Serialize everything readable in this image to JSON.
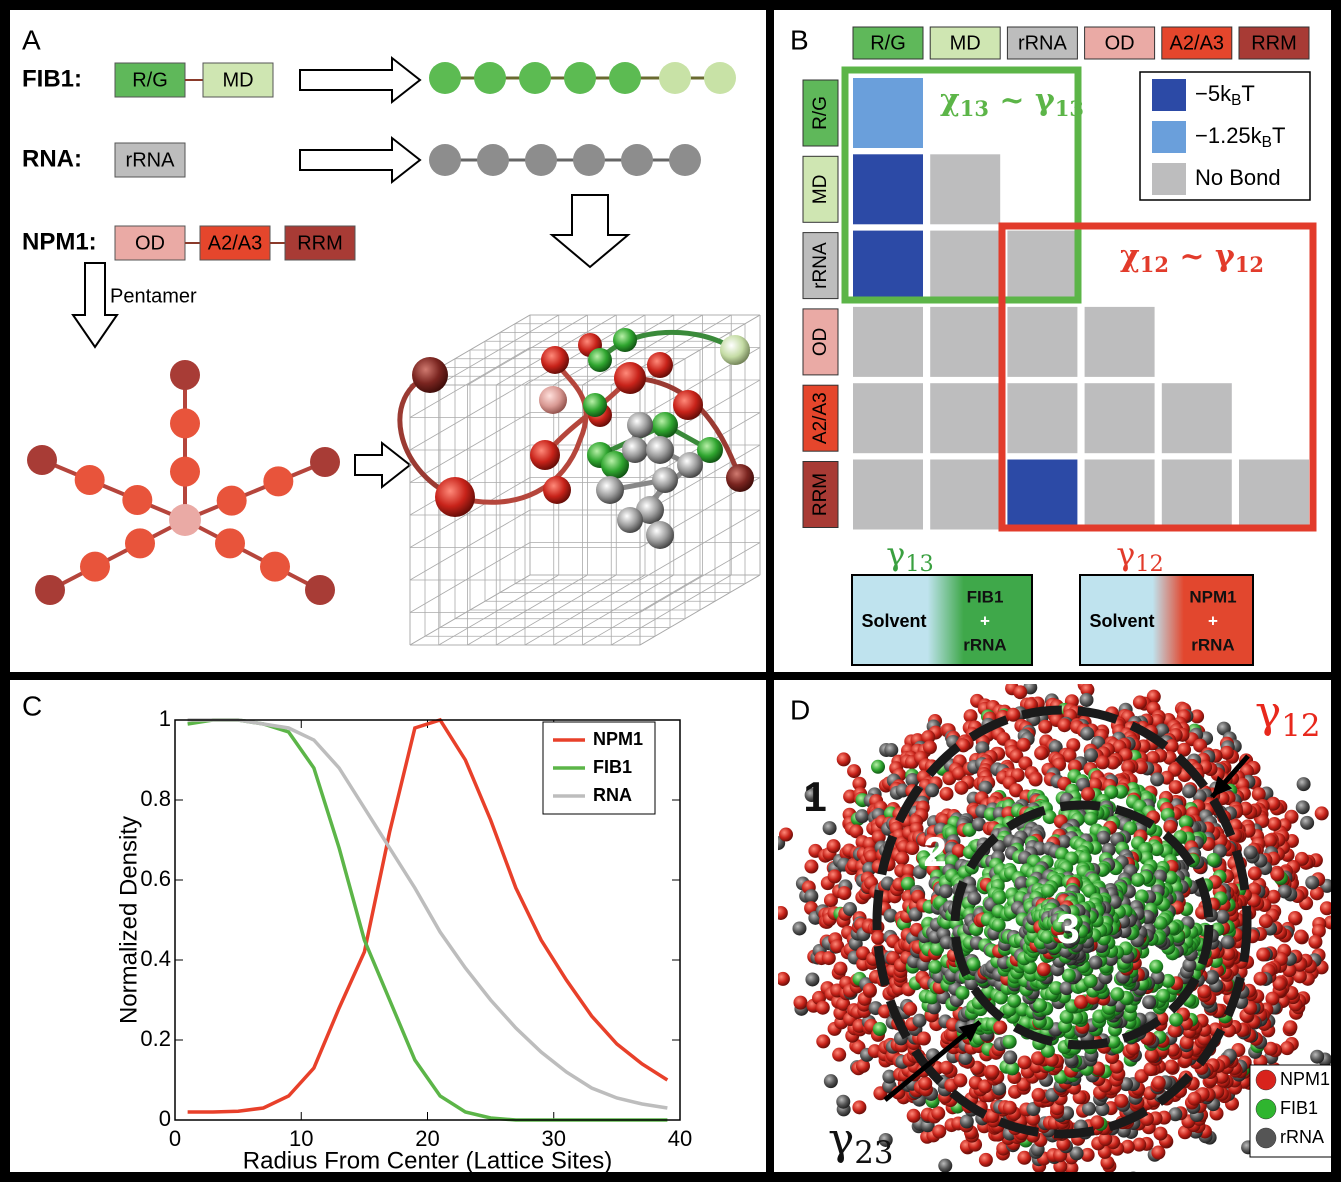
{
  "panel_a": {
    "label": "A",
    "fib1": {
      "name": "FIB1:",
      "domains": [
        "R/G",
        "MD"
      ]
    },
    "rna": {
      "name": "RNA:",
      "domains": [
        "rRNA"
      ]
    },
    "npm1": {
      "name": "NPM1:",
      "domains": [
        "OD",
        "A2/A3",
        "RRM"
      ]
    },
    "pentamer": "Pentamer"
  },
  "panel_b": {
    "label": "B",
    "domains": [
      "R/G",
      "MD",
      "rRNA",
      "OD",
      "A2/A3",
      "RRM"
    ],
    "legend": [
      {
        "text": "−5k",
        "sub": "B",
        "tail": "T",
        "color": "#2c4aa6"
      },
      {
        "text": "−1.25k",
        "sub": "B",
        "tail": "T",
        "color": "#6a9fdb"
      },
      {
        "text": "No Bond",
        "color": "#bdbdbe"
      }
    ],
    "matrix": [
      [
        1
      ],
      [
        0,
        2
      ],
      [
        0,
        2,
        2
      ],
      [
        2,
        2,
        2,
        2
      ],
      [
        2,
        2,
        2,
        2,
        2
      ],
      [
        2,
        2,
        0,
        2,
        2,
        2
      ]
    ],
    "box13": {
      "chi": "χ",
      "chi_sub": "13",
      "sep": " ~ ",
      "gamma": "γ",
      "gamma_sub": "13",
      "color": "#5cb548"
    },
    "box12": {
      "chi": "χ",
      "chi_sub": "12",
      "sep": " ~ ",
      "gamma": "γ",
      "gamma_sub": "12",
      "color": "#e23b2b"
    },
    "interface13": {
      "gamma": "γ",
      "sub": "13",
      "solvent": "Solvent",
      "phase": [
        "FIB1",
        "+",
        "rRNA"
      ]
    },
    "interface12": {
      "gamma": "γ",
      "sub": "12",
      "solvent": "Solvent",
      "phase": [
        "NPM1",
        "+",
        "rRNA"
      ]
    }
  },
  "chart_data": {
    "type": "line",
    "label": "C",
    "x": [
      1,
      3,
      5,
      7,
      9,
      11,
      13,
      15,
      17,
      19,
      21,
      23,
      25,
      27,
      29,
      31,
      33,
      35,
      37,
      39
    ],
    "series": [
      {
        "name": "NPM1",
        "color": "#e8402a",
        "values": [
          0.02,
          0.02,
          0.022,
          0.03,
          0.06,
          0.13,
          0.28,
          0.42,
          0.72,
          0.98,
          1.0,
          0.9,
          0.75,
          0.58,
          0.45,
          0.35,
          0.26,
          0.19,
          0.14,
          0.1
        ]
      },
      {
        "name": "FIB1",
        "color": "#5cb548",
        "values": [
          0.99,
          1.0,
          1.0,
          0.99,
          0.97,
          0.88,
          0.68,
          0.45,
          0.3,
          0.15,
          0.06,
          0.02,
          0.005,
          0,
          0,
          0,
          0,
          0,
          0,
          0
        ]
      },
      {
        "name": "RNA",
        "color": "#bdbdbd",
        "values": [
          1.0,
          1.0,
          1.0,
          0.99,
          0.98,
          0.95,
          0.88,
          0.78,
          0.68,
          0.58,
          0.47,
          0.38,
          0.3,
          0.23,
          0.17,
          0.12,
          0.08,
          0.055,
          0.04,
          0.03
        ]
      }
    ],
    "xlim": [
      0,
      40
    ],
    "ylim": [
      0,
      1
    ],
    "xticks": [
      0,
      10,
      20,
      30,
      40
    ],
    "yticks": [
      0,
      0.2,
      0.4,
      0.6,
      0.8,
      1
    ],
    "xlabel": "Radius From Center (Lattice Sites)",
    "ylabel": "Normalized Density",
    "legend": "upper right"
  },
  "panel_d": {
    "label": "D",
    "gamma12": {
      "symbol": "γ",
      "sub": "12"
    },
    "gamma23": {
      "symbol": "γ",
      "sub": "23"
    },
    "regions": [
      "1",
      "2",
      "3"
    ],
    "legend": [
      {
        "name": "NPM1",
        "color": "#d8231c"
      },
      {
        "name": "FIB1",
        "color": "#2fb52f"
      },
      {
        "name": "rRNA",
        "color": "#555555"
      }
    ]
  }
}
